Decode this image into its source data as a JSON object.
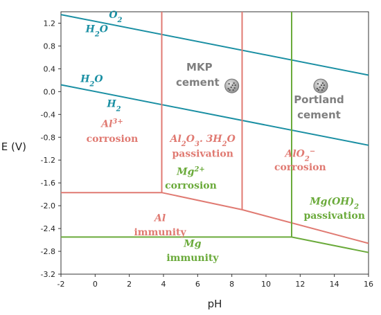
{
  "chart_data": {
    "type": "line",
    "title": "",
    "xlabel": "pH",
    "ylabel": "E (V)",
    "xlim": [
      -2,
      16
    ],
    "ylim": [
      -3.2,
      1.4
    ],
    "x_ticks": [
      "-2",
      "0",
      "2",
      "4",
      "6",
      "8",
      "10",
      "12",
      "14",
      "16"
    ],
    "y_ticks": [
      "-3.2",
      "-2.8",
      "-2.4",
      "-2.0",
      "-1.6",
      "-1.2",
      "-0.8",
      "-0.4",
      "0.0",
      "0.4",
      "0.8",
      "1.2"
    ],
    "grid": false,
    "colors": {
      "water": "#1a8fa3",
      "al": "#e07a72",
      "mg": "#6aaa3a",
      "label_gray": "#7f7f7f"
    },
    "series": [
      {
        "group": "water",
        "color": "#1a8fa3",
        "points": [
          [
            -2,
            1.35
          ],
          [
            16,
            0.29
          ]
        ]
      },
      {
        "group": "water",
        "color": "#1a8fa3",
        "points": [
          [
            -2,
            0.12
          ],
          [
            16,
            -0.94
          ]
        ]
      },
      {
        "group": "al",
        "color": "#e07a72",
        "points": [
          [
            -2,
            -1.77
          ],
          [
            3.9,
            -1.77
          ],
          [
            8.6,
            -2.07
          ],
          [
            16,
            -2.66
          ]
        ]
      },
      {
        "group": "al",
        "color": "#e07a72",
        "points": [
          [
            3.9,
            -1.77
          ],
          [
            3.9,
            1.4
          ]
        ]
      },
      {
        "group": "al",
        "color": "#e07a72",
        "points": [
          [
            8.6,
            -2.07
          ],
          [
            8.6,
            1.4
          ]
        ]
      },
      {
        "group": "mg",
        "color": "#6aaa3a",
        "points": [
          [
            -2,
            -2.55
          ],
          [
            11.5,
            -2.55
          ],
          [
            16,
            -2.82
          ]
        ]
      },
      {
        "group": "mg",
        "color": "#6aaa3a",
        "points": [
          [
            11.5,
            -2.55
          ],
          [
            11.5,
            1.4
          ]
        ]
      }
    ],
    "markers": [
      {
        "name": "mkp-cement-marker",
        "x": 8.0,
        "y": 0.1
      },
      {
        "name": "portland-cement-marker",
        "x": 13.2,
        "y": 0.1
      }
    ],
    "annotations": {
      "o2": {
        "text": "O",
        "sub": "2",
        "x": 1.2,
        "y": 1.29
      },
      "h2o_upper": {
        "text": "H",
        "sub": "2",
        "tail": "O",
        "x": 0.1,
        "y": 1.04
      },
      "h2o_lower": {
        "text": "H",
        "sub": "2",
        "tail": "O",
        "x": -0.2,
        "y": 0.17
      },
      "h2": {
        "text": "H",
        "sub": "2",
        "x": 1.1,
        "y": -0.27
      },
      "al3_corrosion_1": {
        "text": "Al",
        "sup": "3+",
        "x": 1.0,
        "y": -0.62
      },
      "al3_corrosion_2": {
        "text": "corrosion",
        "x": 1.0,
        "y": -0.88
      },
      "alox_passivation_1": {
        "text": "Al",
        "sub": "2",
        "tail": "O",
        "sub2": "3",
        "tail2": ". 3H",
        "sub3": "2",
        "tail3": "O",
        "x": 6.3,
        "y": -0.88
      },
      "alox_passivation_2": {
        "text": "passivation",
        "x": 6.3,
        "y": -1.14
      },
      "alo2_corrosion_1": {
        "text": "AlO",
        "sub": "2",
        "sup": "−",
        "x": 12.0,
        "y": -1.14
      },
      "alo2_corrosion_2": {
        "text": "corrosion",
        "x": 12.0,
        "y": -1.38
      },
      "mg2_corrosion_1": {
        "text": "Mg",
        "sup": "2+",
        "x": 5.6,
        "y": -1.46
      },
      "mg2_corrosion_2": {
        "text": "corrosion",
        "x": 5.6,
        "y": -1.7
      },
      "al_immunity_1": {
        "text": "Al",
        "x": 3.8,
        "y": -2.27
      },
      "al_immunity_2": {
        "text": "immunity",
        "x": 3.8,
        "y": -2.52
      },
      "mgoh2_passivation_1": {
        "text": "Mg(OH)",
        "sub": "2",
        "x": 14.0,
        "y": -1.98
      },
      "mgoh2_passivation_2": {
        "text": "passivation",
        "x": 14.0,
        "y": -2.23
      },
      "mg_immunity_1": {
        "text": "Mg",
        "x": 5.7,
        "y": -2.72
      },
      "mg_immunity_2": {
        "text": "immunity",
        "x": 5.7,
        "y": -2.97
      },
      "mkp_cement_1": {
        "text": "MKP",
        "x": 6.1,
        "y": 0.37
      },
      "mkp_cement_2": {
        "text": "cement",
        "x": 6.0,
        "y": 0.1
      },
      "portland_cement_1": {
        "text": "Portland",
        "x": 13.1,
        "y": -0.2
      },
      "portland_cement_2": {
        "text": "cement",
        "x": 13.1,
        "y": -0.47
      }
    }
  }
}
